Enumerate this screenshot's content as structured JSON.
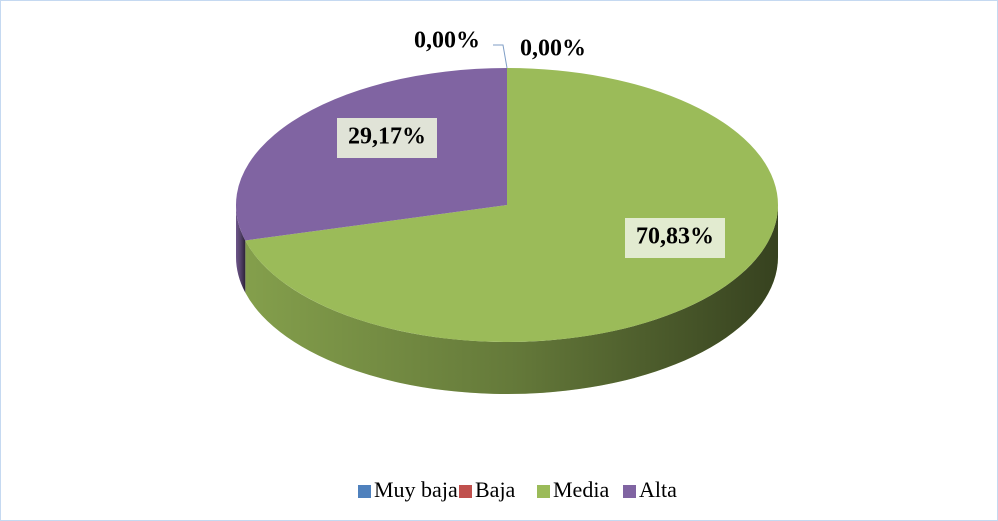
{
  "chart_data": {
    "type": "pie",
    "categories": [
      "Muy baja",
      "Baja",
      "Media",
      "Alta"
    ],
    "values": [
      0,
      0,
      70.83,
      29.17
    ],
    "value_labels": [
      "0,00%",
      "0,00%",
      "70,83%",
      "29,17%"
    ],
    "colors": [
      "#4f81bd",
      "#c0504d",
      "#9bbb59",
      "#8064a2"
    ],
    "legend": "bottom"
  }
}
